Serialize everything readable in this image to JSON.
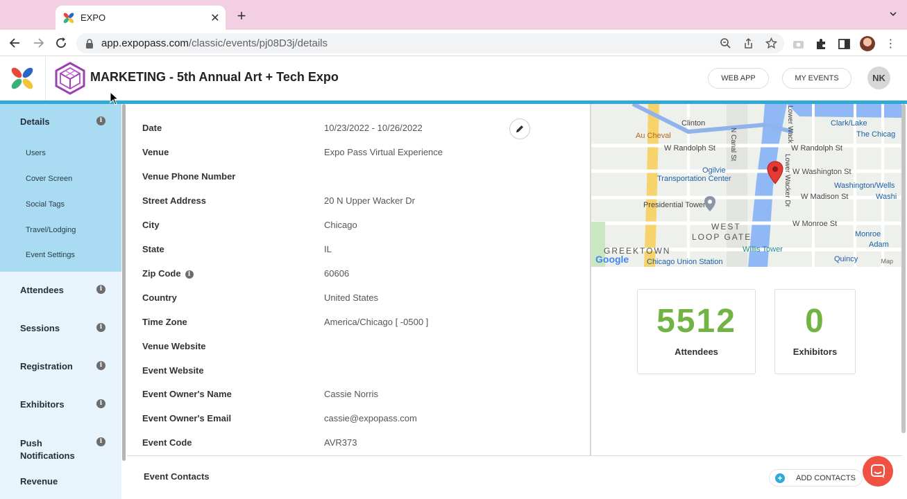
{
  "browser": {
    "tab_title": "EXPO",
    "url_domain": "app.expopass.com",
    "url_path": "/classic/events/pj08D3j/details",
    "new_tab_symbol": "+",
    "close_symbol": "✕"
  },
  "header": {
    "event_title": "MARKETING - 5th Annual Art + Tech Expo",
    "web_app_label": "WEB APP",
    "my_events_label": "MY EVENTS",
    "user_initials": "NK"
  },
  "sidebar": {
    "active": {
      "label": "Details",
      "sub_items": [
        "Users",
        "Cover Screen",
        "Social Tags",
        "Travel/Lodging",
        "Event Settings"
      ]
    },
    "items": [
      "Attendees",
      "Sessions",
      "Registration",
      "Exhibitors",
      "Push Notifications",
      "Revenue"
    ]
  },
  "details": {
    "rows": [
      {
        "label": "Date",
        "value": "10/23/2022 - 10/26/2022"
      },
      {
        "label": "Venue",
        "value": "Expo Pass Virtual Experience"
      },
      {
        "label": "Venue Phone Number",
        "value": ""
      },
      {
        "label": "Street Address",
        "value": "20 N Upper Wacker Dr"
      },
      {
        "label": "City",
        "value": "Chicago"
      },
      {
        "label": "State",
        "value": "IL"
      },
      {
        "label": "Zip Code",
        "value": "60606"
      },
      {
        "label": "Country",
        "value": "United States"
      },
      {
        "label": "Time Zone",
        "value": "America/Chicago [ -0500 ]"
      },
      {
        "label": "Venue Website",
        "value": ""
      },
      {
        "label": "Event Website",
        "value": ""
      },
      {
        "label": "Event Owner's Name",
        "value": "Cassie Norris"
      },
      {
        "label": "Event Owner's Email",
        "value": "cassie@expopass.com"
      },
      {
        "label": "Event Code",
        "value": "AVR373"
      }
    ]
  },
  "map": {
    "labels": {
      "clinton": "Clinton",
      "au_cheval": "Au Cheval",
      "w_randolph_1": "W Randolph St",
      "w_randolph_2": "W Randolph St",
      "clark_lake": "Clark/Lake",
      "the_chicago": "The Chicag",
      "ogilvie": "Ogilvie",
      "transportation_center": "Transportation Center",
      "w_washington": "W Washington St",
      "washington_wells": "Washington/Wells",
      "presidential_towers": "Presidential Towers",
      "w_madison": "W Madison St",
      "washi": "Washi",
      "west_loop_gate_1": "WEST",
      "west_loop_gate_2": "LOOP GATE",
      "w_monroe": "W Monroe St",
      "monroe": "Monroe",
      "adam": "Adam",
      "greektown": "GREEKTOWN",
      "willis_tower": "Willis Tower",
      "union_station": "Chicago Union Station",
      "quincy": "Quincy",
      "n_canal": "N Canal St",
      "lower_wacker": "Lower Wacker Dr",
      "lower_wacker_top": "Lower Wack",
      "google": "Google",
      "attribution": "Map"
    }
  },
  "stats": {
    "attendees_count": "5512",
    "attendees_label": "Attendees",
    "exhibitors_count": "0",
    "exhibitors_label": "Exhibitors"
  },
  "contacts": {
    "title": "Event Contacts",
    "add_label": "ADD CONTACTS"
  },
  "colors": {
    "accent": "#2fa9d6",
    "sidebar_active": "#a9dcf2",
    "sidebar_bg": "#e7f4fb",
    "stat_green": "#72b443",
    "tab_bar": "#f3cfe3",
    "chat": "#ef5142"
  }
}
